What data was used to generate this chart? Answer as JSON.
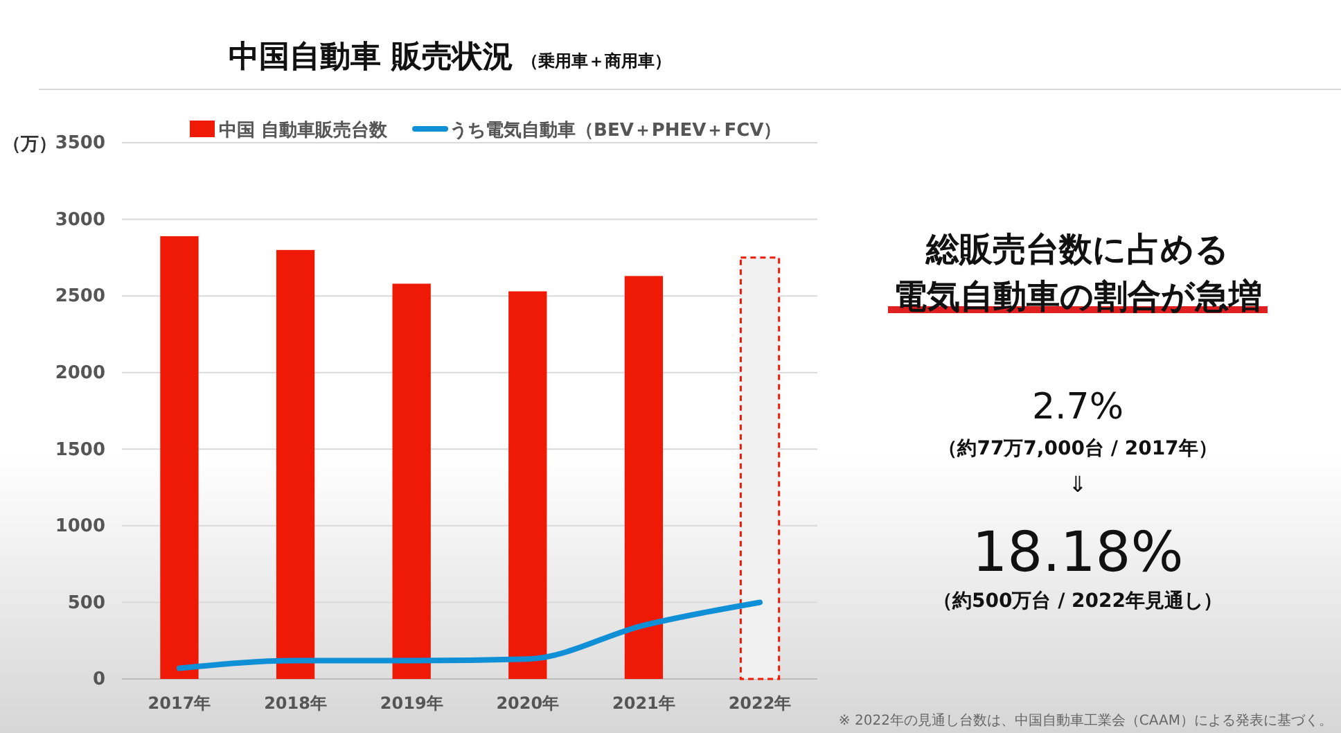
{
  "chart_data": {
    "type": "bar",
    "title": "中国自動車 販売状況",
    "subtitle": "（乗用車＋商用車）",
    "ylabel": "（万）",
    "categories": [
      "2017年",
      "2018年",
      "2019年",
      "2020年",
      "2021年",
      "2022年"
    ],
    "series": [
      {
        "name": "中国 自動車販売台数",
        "color": "#ee1a06",
        "colors": [
          "#ee1a06",
          "#ee1a06",
          "#ee1a06",
          "#ee1a06",
          "#ee1a06",
          "#f0f0f0"
        ],
        "values": [
          2890,
          2800,
          2580,
          2530,
          2630,
          2750
        ]
      },
      {
        "name": "うち電気自動車（BEV＋PHEV＋FCV）",
        "type": "line",
        "color": "#0f8fd6",
        "values": [
          70,
          120,
          120,
          130,
          350,
          500
        ]
      }
    ],
    "ylim": [
      0,
      3500
    ],
    "yticks": [
      0,
      500,
      1000,
      1500,
      2000,
      2500,
      3000,
      3500
    ],
    "grid": "y",
    "legend": "top",
    "marker": "none",
    "line_style": "solid",
    "annotations": [
      "総販売台数に占める",
      "電気自動車の割合が急増",
      "2.7%",
      "（約77万7,000台 / 2017年）",
      "⇓",
      "18.18%",
      "（約500万台 / 2022年見通し）",
      "※ 2022年の見通し台数は、中国自動車工業会（CAAM）による発表に基づく。"
    ]
  }
}
